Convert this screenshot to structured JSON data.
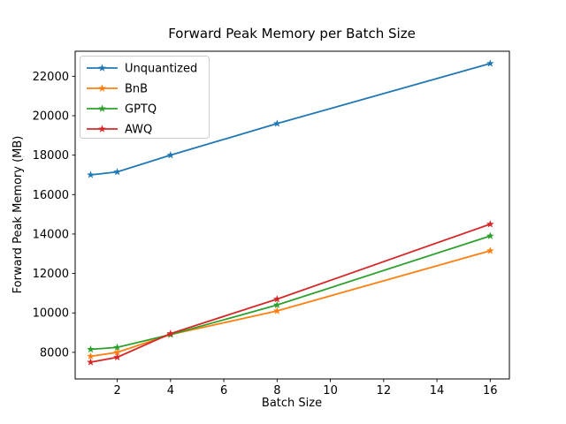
{
  "chart_data": {
    "type": "line",
    "title": "Forward Peak Memory per Batch Size",
    "xlabel": "Batch Size",
    "ylabel": "Forward Peak Memory (MB)",
    "x": [
      1,
      2,
      4,
      8,
      16
    ],
    "series": [
      {
        "name": "Unquantized",
        "color": "#1f77b4",
        "values": [
          17000,
          17150,
          18000,
          19600,
          22650
        ]
      },
      {
        "name": "BnB",
        "color": "#ff7f0e",
        "values": [
          7800,
          8000,
          8900,
          10100,
          13150
        ]
      },
      {
        "name": "GPTQ",
        "color": "#2ca02c",
        "values": [
          8150,
          8250,
          8900,
          10400,
          13900
        ]
      },
      {
        "name": "AWQ",
        "color": "#d62728",
        "values": [
          7500,
          7750,
          8950,
          10700,
          14500
        ]
      }
    ],
    "xticks": [
      2,
      4,
      6,
      8,
      10,
      12,
      14,
      16
    ],
    "yticks": [
      8000,
      10000,
      12000,
      14000,
      16000,
      18000,
      20000,
      22000
    ],
    "xlim": [
      0.42,
      16.72
    ],
    "ylim": [
      6650,
      23270
    ],
    "grid": false,
    "marker": "star",
    "legend_position": "upper left",
    "background_color": "#ffffff",
    "axis_color": "#000000",
    "legend_border_color": "#cccccc"
  }
}
